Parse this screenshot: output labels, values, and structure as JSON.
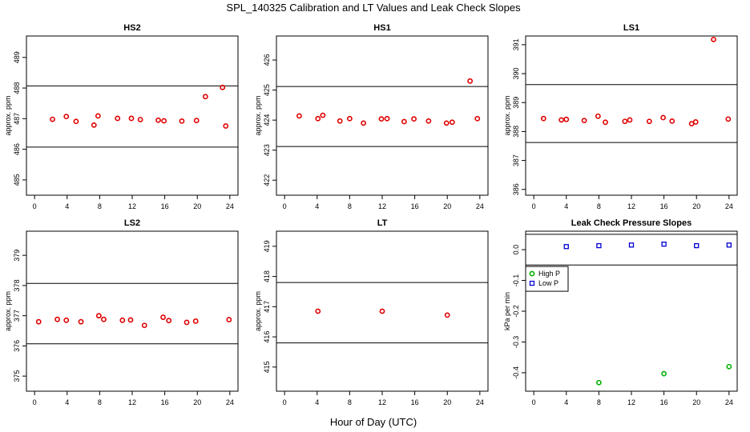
{
  "figure": {
    "title": "SPL_140325  Calibration and LT Values and Leak Check Slopes",
    "xlabel": "Hour of Day (UTC)"
  },
  "chart_data": [
    {
      "type": "scatter",
      "title": "HS2",
      "ylabel": "approx. ppm",
      "xlim": [
        -1,
        25
      ],
      "ylim": [
        484.5,
        489.7
      ],
      "xticks": [
        "0",
        "4",
        "8",
        "12",
        "16",
        "20",
        "24"
      ],
      "yticks": [
        "485",
        "486",
        "487",
        "488",
        "489"
      ],
      "hlines": [
        488.07,
        486.07
      ],
      "color": "#e00000",
      "marker": "circle",
      "points": [
        {
          "x": 2.2,
          "y": 486.98
        },
        {
          "x": 3.9,
          "y": 487.07
        },
        {
          "x": 5.1,
          "y": 486.91
        },
        {
          "x": 7.3,
          "y": 486.79
        },
        {
          "x": 7.8,
          "y": 487.09
        },
        {
          "x": 10.2,
          "y": 487.01
        },
        {
          "x": 11.9,
          "y": 487.01
        },
        {
          "x": 13.0,
          "y": 486.97
        },
        {
          "x": 15.2,
          "y": 486.95
        },
        {
          "x": 15.9,
          "y": 486.93
        },
        {
          "x": 18.1,
          "y": 486.92
        },
        {
          "x": 19.9,
          "y": 486.94
        },
        {
          "x": 21.0,
          "y": 487.72
        },
        {
          "x": 23.1,
          "y": 488.02
        },
        {
          "x": 23.5,
          "y": 486.76
        }
      ]
    },
    {
      "type": "scatter",
      "title": "HS1",
      "ylabel": "approx. ppm",
      "xlim": [
        -1,
        25
      ],
      "ylim": [
        421.5,
        426.8
      ],
      "xticks": [
        "0",
        "4",
        "8",
        "12",
        "16",
        "20",
        "24"
      ],
      "yticks": [
        "422",
        "423",
        "424",
        "425",
        "426"
      ],
      "hlines": [
        425.12,
        423.12
      ],
      "color": "#e00000",
      "marker": "circle",
      "points": [
        {
          "x": 1.8,
          "y": 424.14
        },
        {
          "x": 4.1,
          "y": 424.05
        },
        {
          "x": 4.7,
          "y": 424.16
        },
        {
          "x": 6.8,
          "y": 423.97
        },
        {
          "x": 8.0,
          "y": 424.05
        },
        {
          "x": 9.7,
          "y": 423.9
        },
        {
          "x": 11.9,
          "y": 424.04
        },
        {
          "x": 12.6,
          "y": 424.05
        },
        {
          "x": 14.7,
          "y": 423.95
        },
        {
          "x": 15.9,
          "y": 424.04
        },
        {
          "x": 17.7,
          "y": 423.97
        },
        {
          "x": 19.9,
          "y": 423.9
        },
        {
          "x": 20.6,
          "y": 423.93
        },
        {
          "x": 22.8,
          "y": 425.3
        },
        {
          "x": 23.7,
          "y": 424.05
        }
      ]
    },
    {
      "type": "scatter",
      "title": "LS1",
      "ylabel": "approx. ppm",
      "xlim": [
        -1,
        25
      ],
      "ylim": [
        385.8,
        391.3
      ],
      "xticks": [
        "0",
        "4",
        "8",
        "12",
        "16",
        "20",
        "24"
      ],
      "yticks": [
        "386",
        "387",
        "388",
        "389",
        "390",
        "391"
      ],
      "hlines": [
        389.62,
        387.62
      ],
      "color": "#e00000",
      "marker": "circle",
      "points": [
        {
          "x": 1.2,
          "y": 388.45
        },
        {
          "x": 3.4,
          "y": 388.4
        },
        {
          "x": 4.0,
          "y": 388.42
        },
        {
          "x": 6.2,
          "y": 388.38
        },
        {
          "x": 7.9,
          "y": 388.53
        },
        {
          "x": 8.8,
          "y": 388.32
        },
        {
          "x": 11.2,
          "y": 388.35
        },
        {
          "x": 11.8,
          "y": 388.4
        },
        {
          "x": 14.2,
          "y": 388.35
        },
        {
          "x": 15.9,
          "y": 388.48
        },
        {
          "x": 17.0,
          "y": 388.36
        },
        {
          "x": 19.4,
          "y": 388.27
        },
        {
          "x": 19.9,
          "y": 388.33
        },
        {
          "x": 22.1,
          "y": 391.18
        },
        {
          "x": 23.9,
          "y": 388.43
        }
      ]
    },
    {
      "type": "scatter",
      "title": "LS2",
      "ylabel": "approx. ppm",
      "xlim": [
        -1,
        25
      ],
      "ylim": [
        374.5,
        379.8
      ],
      "xticks": [
        "0",
        "4",
        "8",
        "12",
        "16",
        "20",
        "24"
      ],
      "yticks": [
        "375",
        "376",
        "377",
        "378",
        "379"
      ],
      "hlines": [
        378.07,
        376.07
      ],
      "color": "#e00000",
      "marker": "circle",
      "points": [
        {
          "x": 0.5,
          "y": 376.8
        },
        {
          "x": 2.8,
          "y": 376.88
        },
        {
          "x": 3.9,
          "y": 376.85
        },
        {
          "x": 5.7,
          "y": 376.8
        },
        {
          "x": 7.9,
          "y": 377.0
        },
        {
          "x": 8.5,
          "y": 376.88
        },
        {
          "x": 10.8,
          "y": 376.85
        },
        {
          "x": 11.8,
          "y": 376.86
        },
        {
          "x": 13.5,
          "y": 376.68
        },
        {
          "x": 15.8,
          "y": 376.95
        },
        {
          "x": 16.5,
          "y": 376.84
        },
        {
          "x": 18.7,
          "y": 376.78
        },
        {
          "x": 19.8,
          "y": 376.82
        },
        {
          "x": 23.9,
          "y": 376.87
        }
      ]
    },
    {
      "type": "scatter",
      "title": "LT",
      "ylabel": "approx. ppm",
      "xlim": [
        -1,
        25
      ],
      "ylim": [
        414.2,
        419.5
      ],
      "xticks": [
        "0",
        "4",
        "8",
        "12",
        "16",
        "20",
        "24"
      ],
      "yticks": [
        "415",
        "416",
        "417",
        "418",
        "419"
      ],
      "hlines": [
        417.8,
        415.8
      ],
      "color": "#e00000",
      "marker": "circle",
      "points": [
        {
          "x": 4.1,
          "y": 416.85
        },
        {
          "x": 12.0,
          "y": 416.85
        },
        {
          "x": 20.0,
          "y": 416.72
        }
      ]
    },
    {
      "type": "scatter",
      "title": "Leak Check Pressure Slopes",
      "ylabel": "kPa per min",
      "xlim": [
        -1,
        25
      ],
      "ylim": [
        -0.46,
        0.06
      ],
      "xticks": [
        "0",
        "4",
        "8",
        "12",
        "16",
        "20",
        "24"
      ],
      "yticks": [
        "0.0",
        "-0.1",
        "-0.2",
        "-0.3",
        "-0.4"
      ],
      "hlines": [
        0.05,
        -0.05
      ],
      "legend": {
        "position": "middle-left",
        "entries": [
          "High P",
          "Low P"
        ]
      },
      "series": [
        {
          "name": "High P",
          "color": "#00b000",
          "marker": "circle",
          "points": [
            {
              "x": 8.0,
              "y": -0.432
            },
            {
              "x": 16.0,
              "y": -0.403
            },
            {
              "x": 24.0,
              "y": -0.38
            }
          ]
        },
        {
          "name": "Low P",
          "color": "#0000d0",
          "marker": "square",
          "points": [
            {
              "x": 4.0,
              "y": 0.01
            },
            {
              "x": 8.0,
              "y": 0.013
            },
            {
              "x": 12.0,
              "y": 0.015
            },
            {
              "x": 16.0,
              "y": 0.018
            },
            {
              "x": 20.0,
              "y": 0.013
            },
            {
              "x": 24.0,
              "y": 0.015
            }
          ]
        }
      ]
    }
  ]
}
